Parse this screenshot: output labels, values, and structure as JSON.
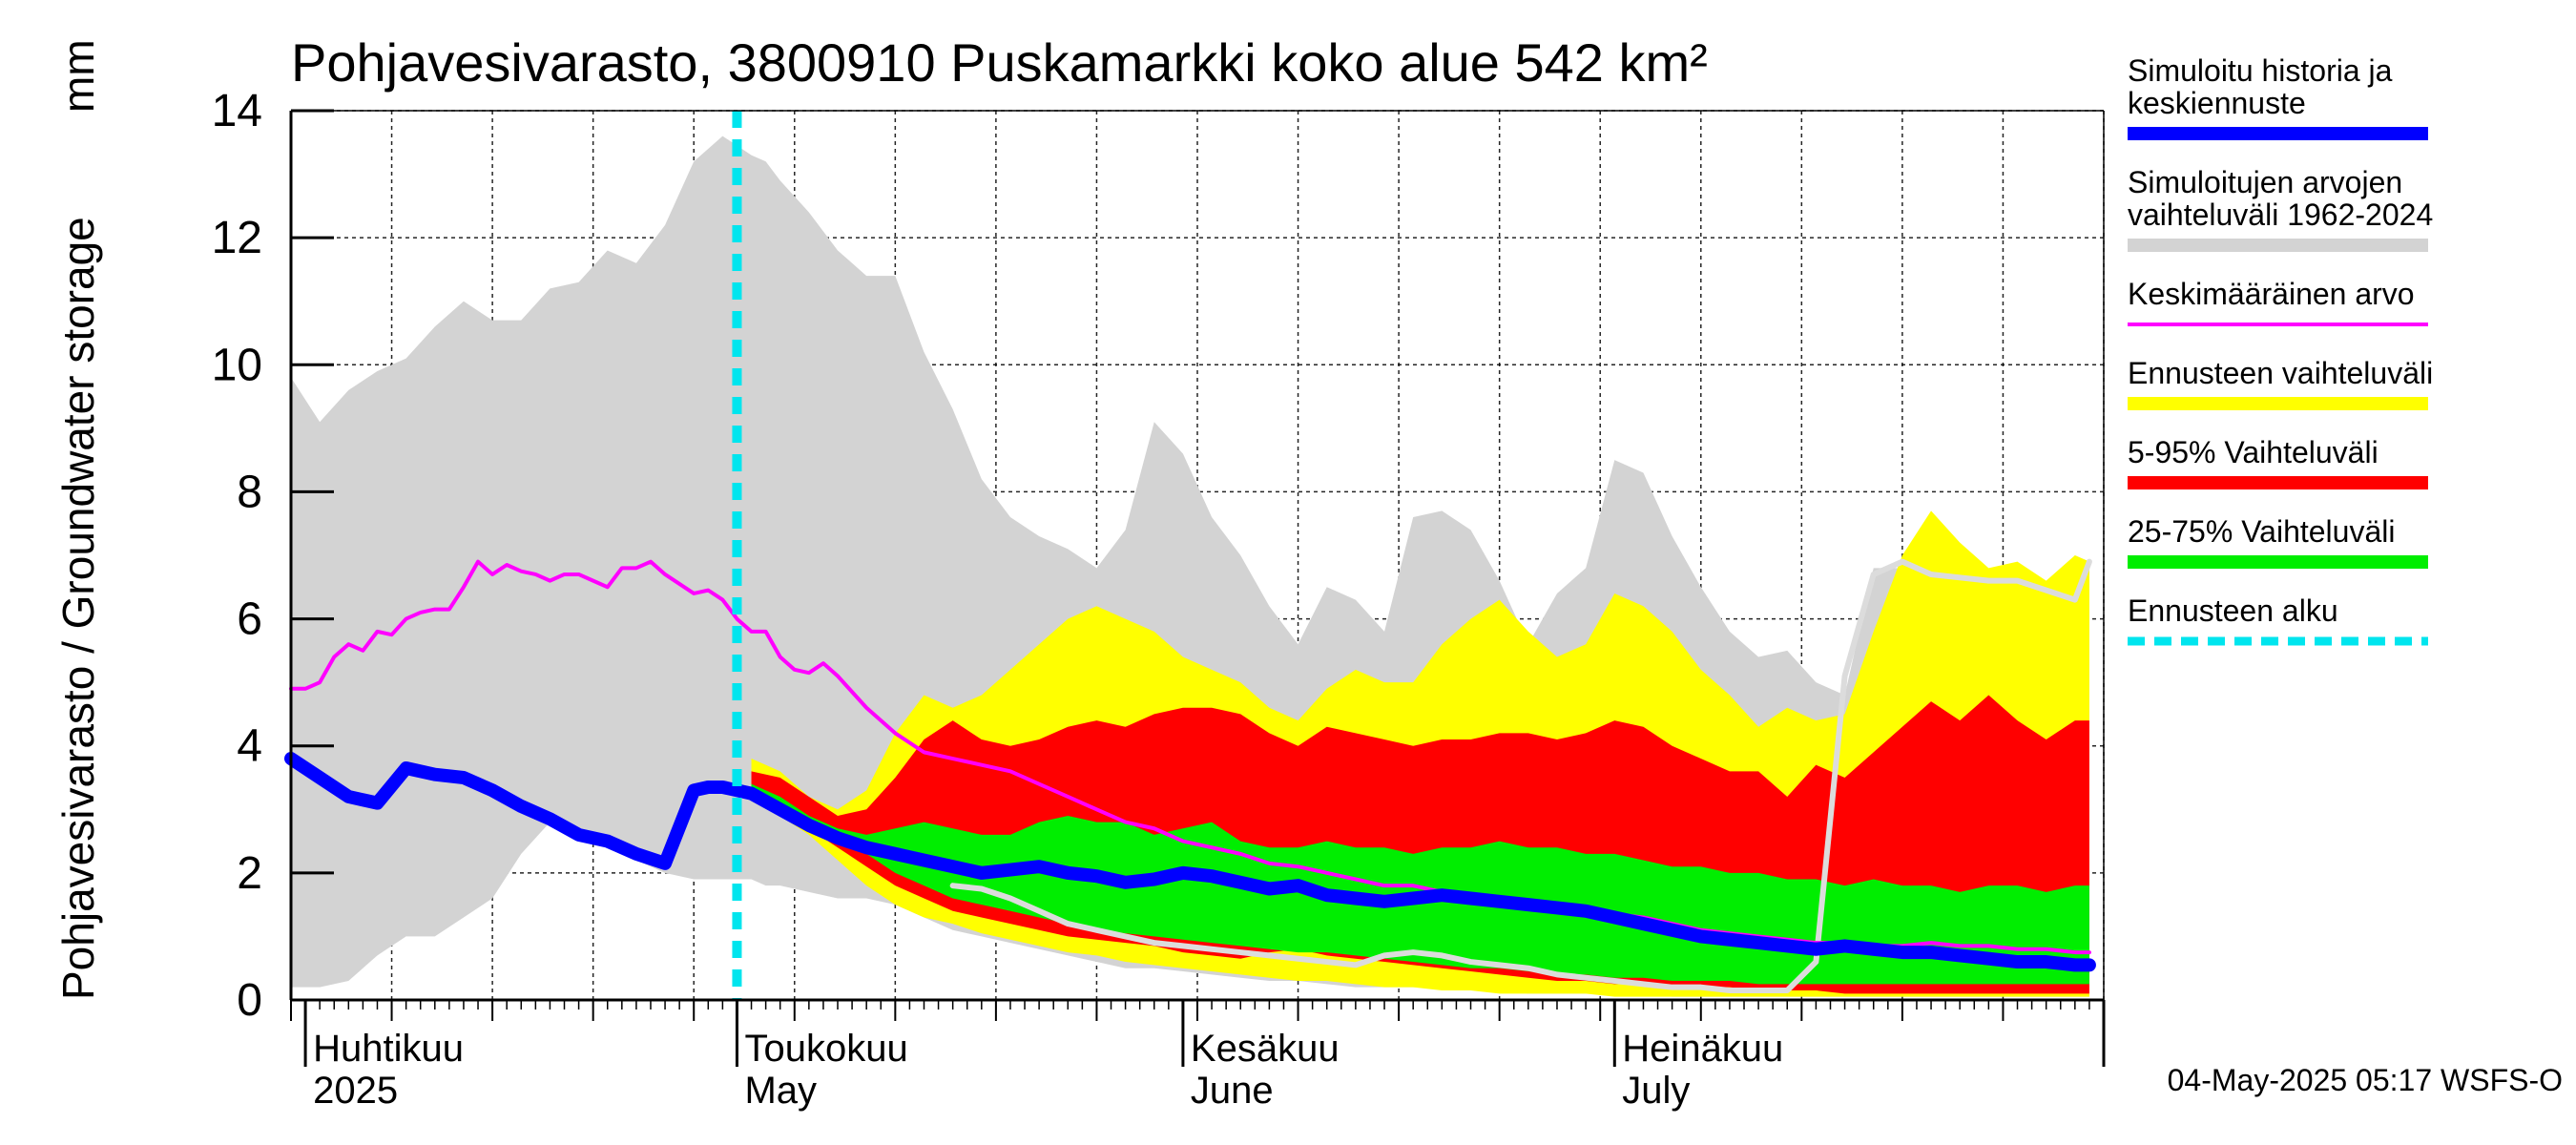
{
  "chart_data": {
    "type": "area",
    "title": "Pohjavesivarasto, 3800910 Puskamarkki koko alue 542 km²",
    "ylabel": "Pohjavesivarasto / Groundwater storage",
    "yunit": "mm",
    "ylim": [
      0,
      14
    ],
    "yticks": [
      0,
      2,
      4,
      6,
      8,
      10,
      12,
      14
    ],
    "x_start": "2025-03-31",
    "x_end": "2025-08-04",
    "x_months": [
      {
        "fi": "Huhtikuu",
        "en": "2025",
        "date": "2025-04-01"
      },
      {
        "fi": "Toukokuu",
        "en": "May",
        "date": "2025-05-01"
      },
      {
        "fi": "Kesäkuu",
        "en": "June",
        "date": "2025-06-01"
      },
      {
        "fi": "Heinäkuu",
        "en": "July",
        "date": "2025-07-01"
      }
    ],
    "forecast_start": "2025-05-01",
    "series": [
      {
        "name": "Simuloitujen arvojen vaihteluväli 1962-2024",
        "kind": "band",
        "color": "#d3d3d3",
        "x": [
          0,
          2,
          4,
          6,
          8,
          10,
          12,
          14,
          16,
          18,
          20,
          22,
          24,
          26,
          28,
          30,
          32,
          33,
          34,
          36,
          38,
          40,
          42,
          44,
          46,
          48,
          50,
          52,
          54,
          56,
          58,
          60,
          62,
          64,
          66,
          68,
          70,
          72,
          74,
          76,
          78,
          80,
          82,
          84,
          86,
          88,
          90,
          92,
          94,
          96,
          98,
          100,
          102,
          104,
          106,
          108,
          110,
          112,
          114,
          116,
          118,
          120,
          122,
          124,
          125
        ],
        "upper": [
          9.8,
          9.1,
          9.6,
          9.9,
          10.1,
          10.6,
          11.0,
          10.7,
          10.7,
          11.2,
          11.3,
          11.8,
          11.6,
          12.2,
          13.2,
          13.6,
          13.3,
          13.2,
          12.9,
          12.4,
          11.8,
          11.4,
          11.4,
          10.2,
          9.3,
          8.2,
          7.6,
          7.3,
          7.1,
          6.8,
          7.4,
          9.1,
          8.6,
          7.6,
          7.0,
          6.2,
          5.6,
          6.5,
          6.3,
          5.8,
          7.6,
          7.7,
          7.4,
          6.6,
          5.6,
          6.4,
          6.8,
          8.5,
          8.3,
          7.3,
          6.5,
          5.8,
          5.4,
          5.5,
          5.0,
          4.8,
          6.8,
          6.8,
          7.0,
          6.9,
          6.6,
          6.6,
          6.4,
          7.0,
          6.9
        ],
        "lower": [
          0.2,
          0.2,
          0.3,
          0.7,
          1.0,
          1.0,
          1.3,
          1.6,
          2.3,
          2.8,
          2.7,
          2.5,
          2.2,
          2.0,
          1.9,
          1.9,
          1.9,
          1.8,
          1.8,
          1.7,
          1.6,
          1.6,
          1.5,
          1.3,
          1.1,
          1.0,
          0.9,
          0.8,
          0.7,
          0.6,
          0.5,
          0.5,
          0.45,
          0.4,
          0.35,
          0.3,
          0.3,
          0.25,
          0.2,
          0.2,
          0.2,
          0.2,
          0.15,
          0.15,
          0.1,
          0.1,
          0.1,
          0.1,
          0.1,
          0.05,
          0.05,
          0.05,
          0.05,
          0.05,
          0.05,
          0.05,
          0.05,
          0.05,
          0.05,
          0.05,
          0.05,
          0.05,
          0.05,
          0.05,
          0.05
        ]
      },
      {
        "name": "Ennusteen vaihteluväli",
        "kind": "band",
        "color": "#ffff00",
        "x": [
          32,
          34,
          36,
          38,
          40,
          42,
          44,
          46,
          48,
          50,
          52,
          54,
          56,
          58,
          60,
          62,
          64,
          66,
          68,
          70,
          72,
          74,
          76,
          78,
          80,
          82,
          84,
          86,
          88,
          90,
          92,
          94,
          96,
          98,
          100,
          102,
          104,
          106,
          108,
          110,
          112,
          114,
          116,
          118,
          120,
          122,
          124,
          125
        ],
        "upper": [
          3.8,
          3.6,
          3.2,
          3.0,
          3.3,
          4.2,
          4.8,
          4.6,
          4.8,
          5.2,
          5.6,
          6.0,
          6.2,
          6.0,
          5.8,
          5.4,
          5.2,
          5.0,
          4.6,
          4.4,
          4.9,
          5.2,
          5.0,
          5.0,
          5.6,
          6.0,
          6.3,
          5.8,
          5.4,
          5.6,
          6.4,
          6.2,
          5.8,
          5.2,
          4.8,
          4.3,
          4.6,
          4.4,
          4.5,
          5.8,
          7.0,
          7.7,
          7.2,
          6.8,
          6.9,
          6.6,
          7.0,
          6.9
        ],
        "lower": [
          3.2,
          2.9,
          2.6,
          2.2,
          1.8,
          1.5,
          1.3,
          1.2,
          1.05,
          0.95,
          0.85,
          0.75,
          0.7,
          0.6,
          0.55,
          0.5,
          0.45,
          0.4,
          0.35,
          0.3,
          0.3,
          0.25,
          0.2,
          0.2,
          0.15,
          0.15,
          0.1,
          0.1,
          0.1,
          0.1,
          0.05,
          0.05,
          0.05,
          0.05,
          0.05,
          0.05,
          0.05,
          0.05,
          0.05,
          0.05,
          0.05,
          0.05,
          0.05,
          0.05,
          0.05,
          0.05,
          0.05,
          0.05
        ]
      },
      {
        "name": "5-95% Vaihteluväli",
        "kind": "band",
        "color": "#ff0000",
        "x": [
          32,
          34,
          36,
          38,
          40,
          42,
          44,
          46,
          48,
          50,
          52,
          54,
          56,
          58,
          60,
          62,
          64,
          66,
          68,
          70,
          72,
          74,
          76,
          78,
          80,
          82,
          84,
          86,
          88,
          90,
          92,
          94,
          96,
          98,
          100,
          102,
          104,
          106,
          108,
          110,
          112,
          114,
          116,
          118,
          120,
          122,
          124,
          125
        ],
        "upper": [
          3.6,
          3.5,
          3.2,
          2.9,
          3.0,
          3.5,
          4.1,
          4.4,
          4.1,
          4.0,
          4.1,
          4.3,
          4.4,
          4.3,
          4.5,
          4.6,
          4.6,
          4.5,
          4.2,
          4.0,
          4.3,
          4.2,
          4.1,
          4.0,
          4.1,
          4.1,
          4.2,
          4.2,
          4.1,
          4.2,
          4.4,
          4.3,
          4.0,
          3.8,
          3.6,
          3.6,
          3.2,
          3.7,
          3.5,
          3.9,
          4.3,
          4.7,
          4.4,
          4.8,
          4.4,
          4.1,
          4.4,
          4.4
        ],
        "lower": [
          3.2,
          3.0,
          2.7,
          2.4,
          2.1,
          1.8,
          1.6,
          1.4,
          1.3,
          1.2,
          1.1,
          1.0,
          0.95,
          0.9,
          0.85,
          0.75,
          0.7,
          0.65,
          0.75,
          0.8,
          0.7,
          0.65,
          0.6,
          0.55,
          0.5,
          0.45,
          0.4,
          0.35,
          0.3,
          0.3,
          0.25,
          0.25,
          0.2,
          0.2,
          0.2,
          0.15,
          0.15,
          0.15,
          0.1,
          0.1,
          0.1,
          0.1,
          0.1,
          0.1,
          0.1,
          0.1,
          0.1,
          0.1
        ]
      },
      {
        "name": "25-75% Vaihteluväli",
        "kind": "band",
        "color": "#00ee00",
        "x": [
          32,
          34,
          36,
          38,
          40,
          42,
          44,
          46,
          48,
          50,
          52,
          54,
          56,
          58,
          60,
          62,
          64,
          66,
          68,
          70,
          72,
          74,
          76,
          78,
          80,
          82,
          84,
          86,
          88,
          90,
          92,
          94,
          96,
          98,
          100,
          102,
          104,
          106,
          108,
          110,
          112,
          114,
          116,
          118,
          120,
          122,
          124,
          125
        ],
        "upper": [
          3.4,
          3.2,
          2.9,
          2.7,
          2.6,
          2.7,
          2.8,
          2.7,
          2.6,
          2.6,
          2.8,
          2.9,
          2.8,
          2.8,
          2.6,
          2.7,
          2.8,
          2.5,
          2.4,
          2.4,
          2.5,
          2.4,
          2.4,
          2.3,
          2.4,
          2.4,
          2.5,
          2.4,
          2.4,
          2.3,
          2.3,
          2.2,
          2.1,
          2.1,
          2.0,
          2.0,
          1.9,
          1.9,
          1.8,
          1.9,
          1.8,
          1.8,
          1.7,
          1.8,
          1.8,
          1.7,
          1.8,
          1.8
        ],
        "lower": [
          3.3,
          3.1,
          2.8,
          2.5,
          2.3,
          2.0,
          1.8,
          1.6,
          1.5,
          1.4,
          1.3,
          1.2,
          1.1,
          1.05,
          1.0,
          0.95,
          0.9,
          0.85,
          0.8,
          0.75,
          0.75,
          0.7,
          0.65,
          0.6,
          0.55,
          0.5,
          0.5,
          0.45,
          0.4,
          0.4,
          0.35,
          0.35,
          0.3,
          0.3,
          0.3,
          0.25,
          0.25,
          0.25,
          0.25,
          0.25,
          0.25,
          0.25,
          0.25,
          0.25,
          0.25,
          0.25,
          0.25,
          0.25
        ]
      },
      {
        "name": "Keskimääräinen arvo",
        "kind": "line",
        "color": "#ff00ff",
        "x": [
          0,
          1,
          2,
          3,
          4,
          5,
          6,
          7,
          8,
          9,
          10,
          11,
          12,
          13,
          14,
          15,
          16,
          17,
          18,
          19,
          20,
          21,
          22,
          23,
          24,
          25,
          26,
          27,
          28,
          29,
          30,
          31,
          32,
          33,
          34,
          35,
          36,
          37,
          38,
          40,
          42,
          44,
          46,
          48,
          50,
          52,
          54,
          56,
          58,
          60,
          62,
          64,
          66,
          68,
          70,
          72,
          74,
          76,
          78,
          80,
          82,
          84,
          86,
          88,
          90,
          92,
          94,
          96,
          98,
          100,
          102,
          104,
          106,
          108,
          110,
          112,
          114,
          116,
          118,
          120,
          122,
          124,
          125
        ],
        "values": [
          4.9,
          4.9,
          5.0,
          5.4,
          5.6,
          5.5,
          5.8,
          5.75,
          6.0,
          6.1,
          6.15,
          6.15,
          6.5,
          6.9,
          6.7,
          6.85,
          6.75,
          6.7,
          6.6,
          6.7,
          6.7,
          6.6,
          6.5,
          6.8,
          6.8,
          6.9,
          6.7,
          6.55,
          6.4,
          6.45,
          6.3,
          6.0,
          5.8,
          5.8,
          5.4,
          5.2,
          5.15,
          5.3,
          5.1,
          4.6,
          4.2,
          3.9,
          3.8,
          3.7,
          3.6,
          3.4,
          3.2,
          3.0,
          2.8,
          2.7,
          2.5,
          2.4,
          2.3,
          2.15,
          2.1,
          2.0,
          1.9,
          1.8,
          1.8,
          1.7,
          1.6,
          1.5,
          1.5,
          1.45,
          1.4,
          1.35,
          1.3,
          1.2,
          1.1,
          1.05,
          1.0,
          0.95,
          0.9,
          0.9,
          0.85,
          0.85,
          0.9,
          0.85,
          0.85,
          0.8,
          0.8,
          0.75,
          0.75
        ]
      },
      {
        "name": "Simuloitu historia ja keskiennuste",
        "kind": "line",
        "color": "#0000ff",
        "x": [
          0,
          2,
          4,
          6,
          8,
          10,
          12,
          14,
          16,
          18,
          20,
          22,
          24,
          26,
          28,
          29,
          30,
          31,
          32,
          34,
          36,
          38,
          40,
          42,
          44,
          46,
          48,
          50,
          52,
          54,
          56,
          58,
          60,
          62,
          64,
          66,
          68,
          70,
          72,
          74,
          76,
          78,
          80,
          82,
          84,
          86,
          88,
          90,
          92,
          94,
          96,
          98,
          100,
          102,
          104,
          106,
          108,
          110,
          112,
          114,
          116,
          118,
          120,
          122,
          124,
          125
        ],
        "values": [
          3.8,
          3.5,
          3.2,
          3.1,
          3.65,
          3.55,
          3.5,
          3.3,
          3.05,
          2.85,
          2.6,
          2.5,
          2.3,
          2.15,
          3.3,
          3.35,
          3.35,
          3.3,
          3.25,
          3.0,
          2.75,
          2.55,
          2.4,
          2.3,
          2.2,
          2.1,
          2.0,
          2.05,
          2.1,
          2.0,
          1.95,
          1.85,
          1.9,
          2.0,
          1.95,
          1.85,
          1.75,
          1.8,
          1.65,
          1.6,
          1.55,
          1.6,
          1.65,
          1.6,
          1.55,
          1.5,
          1.45,
          1.4,
          1.3,
          1.2,
          1.1,
          1.0,
          0.95,
          0.9,
          0.85,
          0.8,
          0.85,
          0.8,
          0.75,
          0.75,
          0.7,
          0.65,
          0.6,
          0.6,
          0.55,
          0.55
        ]
      },
      {
        "name": "Simulated history (light)",
        "kind": "line",
        "color": "#dcdcdc",
        "x": [
          46,
          48,
          50,
          52,
          54,
          56,
          58,
          60,
          62,
          64,
          66,
          68,
          70,
          72,
          74,
          76,
          78,
          80,
          82,
          84,
          86,
          88,
          90,
          92,
          94,
          96,
          98,
          100,
          102,
          104,
          106,
          108,
          110,
          112,
          114,
          116,
          118,
          120,
          122,
          124,
          125
        ],
        "values": [
          1.8,
          1.75,
          1.6,
          1.4,
          1.2,
          1.1,
          1.0,
          0.9,
          0.85,
          0.8,
          0.75,
          0.7,
          0.65,
          0.6,
          0.55,
          0.7,
          0.75,
          0.7,
          0.6,
          0.55,
          0.5,
          0.4,
          0.35,
          0.3,
          0.25,
          0.2,
          0.2,
          0.15,
          0.15,
          0.15,
          0.6,
          5.1,
          6.7,
          6.9,
          6.7,
          6.65,
          6.6,
          6.6,
          6.45,
          6.3,
          6.9
        ]
      }
    ],
    "legend": [
      {
        "label": "Simuloitu historia ja keskiennuste",
        "line1": "Simuloitu historia ja",
        "line2": "keskiennuste",
        "color": "#0000ff",
        "style": "thick"
      },
      {
        "label": "Simuloitujen arvojen vaihteluväli 1962-2024",
        "line1": "Simuloitujen arvojen",
        "line2": "vaihteluväli 1962-2024",
        "color": "#d3d3d3",
        "style": "thick"
      },
      {
        "label": "Keskimääräinen arvo",
        "line1": "Keskimääräinen arvo",
        "line2": "",
        "color": "#ff00ff",
        "style": "thin"
      },
      {
        "label": "Ennusteen vaihteluväli",
        "line1": "Ennusteen vaihteluväli",
        "line2": "",
        "color": "#ffff00",
        "style": "thick"
      },
      {
        "label": "5-95% Vaihteluväli",
        "line1": "5-95% Vaihteluväli",
        "line2": "",
        "color": "#ff0000",
        "style": "thick"
      },
      {
        "label": "25-75% Vaihteluväli",
        "line1": "25-75% Vaihteluväli",
        "line2": "",
        "color": "#00ee00",
        "style": "thick"
      },
      {
        "label": "Ennusteen alku",
        "line1": "Ennusteen alku",
        "line2": "",
        "color": "#00e5ee",
        "style": "dashed"
      }
    ],
    "footer": "04-May-2025 05:17 WSFS-O"
  }
}
